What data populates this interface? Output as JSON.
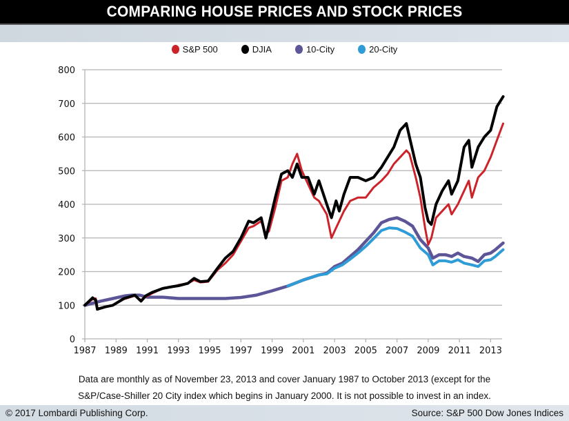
{
  "chart_data": {
    "type": "line",
    "title": "COMPARING HOUSE PRICES AND STOCK PRICES",
    "xlabel": "",
    "ylabel": "",
    "xlim": [
      1987,
      2013.8
    ],
    "ylim": [
      0,
      800
    ],
    "grid": true,
    "legend_position": "top-center",
    "x_ticks": [
      "1987",
      "1989",
      "1991",
      "1993",
      "1995",
      "1997",
      "1999",
      "2001",
      "2003",
      "2005",
      "2007",
      "2009",
      "2011",
      "2013"
    ],
    "y_ticks": [
      "0",
      "100",
      "200",
      "300",
      "400",
      "500",
      "600",
      "700",
      "800"
    ],
    "series": [
      {
        "name": "S&P 500",
        "color": "#cc2229",
        "x": [
          1987,
          1987.5,
          1987.7,
          1987.8,
          1988.3,
          1988.8,
          1989.5,
          1990.2,
          1990.6,
          1990.9,
          1991.3,
          1992,
          1992.6,
          1993,
          1993.6,
          1994,
          1994.4,
          1994.9,
          1995.5,
          1996,
          1996.5,
          1997,
          1997.5,
          1997.8,
          1998.3,
          1998.6,
          1998.8,
          1999.2,
          1999.6,
          2000,
          2000.3,
          2000.6,
          2000.9,
          2001.3,
          2001.7,
          2002,
          2002.5,
          2002.8,
          2003.1,
          2003.3,
          2003.6,
          2004,
          2004.5,
          2005,
          2005.5,
          2006,
          2006.4,
          2006.8,
          2007.2,
          2007.6,
          2007.8,
          2008.2,
          2008.5,
          2008.8,
          2009.0,
          2009.2,
          2009.5,
          2009.9,
          2010.3,
          2010.5,
          2010.9,
          2011.3,
          2011.6,
          2011.8,
          2012.2,
          2012.6,
          2013,
          2013.4,
          2013.8
        ],
        "values": [
          100,
          118,
          120,
          90,
          95,
          100,
          118,
          128,
          115,
          125,
          135,
          150,
          155,
          160,
          165,
          175,
          168,
          170,
          205,
          225,
          250,
          290,
          330,
          335,
          350,
          310,
          320,
          390,
          470,
          480,
          520,
          550,
          500,
          460,
          420,
          410,
          370,
          300,
          330,
          350,
          380,
          410,
          420,
          420,
          450,
          470,
          490,
          520,
          540,
          560,
          550,
          480,
          420,
          330,
          280,
          300,
          360,
          380,
          400,
          370,
          400,
          440,
          470,
          420,
          480,
          500,
          540,
          590,
          640
        ]
      },
      {
        "name": "DJIA",
        "color": "#000000",
        "x": [
          1987,
          1987.5,
          1987.7,
          1987.8,
          1988.3,
          1988.8,
          1989.5,
          1990.2,
          1990.6,
          1990.9,
          1991.3,
          1992,
          1992.6,
          1993,
          1993.6,
          1994,
          1994.4,
          1994.9,
          1995.5,
          1996,
          1996.5,
          1997,
          1997.5,
          1997.8,
          1998.3,
          1998.6,
          1998.8,
          1999.2,
          1999.6,
          2000,
          2000.3,
          2000.6,
          2000.9,
          2001.3,
          2001.7,
          2002,
          2002.5,
          2002.8,
          2003.1,
          2003.3,
          2003.6,
          2004,
          2004.5,
          2005,
          2005.5,
          2006,
          2006.4,
          2006.8,
          2007.2,
          2007.6,
          2007.8,
          2008.2,
          2008.5,
          2008.8,
          2009.0,
          2009.2,
          2009.5,
          2009.9,
          2010.3,
          2010.5,
          2010.9,
          2011.3,
          2011.6,
          2011.8,
          2012.2,
          2012.6,
          2013,
          2013.4,
          2013.8
        ],
        "values": [
          100,
          122,
          115,
          88,
          95,
          100,
          120,
          130,
          112,
          128,
          138,
          150,
          155,
          158,
          165,
          180,
          170,
          172,
          210,
          240,
          260,
          300,
          350,
          345,
          360,
          300,
          340,
          420,
          490,
          500,
          480,
          520,
          480,
          480,
          430,
          470,
          400,
          360,
          410,
          380,
          430,
          480,
          480,
          470,
          480,
          510,
          540,
          570,
          620,
          640,
          600,
          520,
          480,
          390,
          350,
          340,
          400,
          440,
          470,
          430,
          470,
          570,
          590,
          510,
          570,
          600,
          620,
          690,
          720
        ]
      },
      {
        "name": "10-City",
        "color": "#5c5699",
        "x": [
          1987,
          1988,
          1989,
          1989.6,
          1990,
          1990.5,
          1991,
          1992,
          1993,
          1994,
          1995,
          1996,
          1997,
          1998,
          1999,
          2000,
          2001,
          2002,
          2002.5,
          2003,
          2003.5,
          2004,
          2004.5,
          2005,
          2005.5,
          2006,
          2006.5,
          2007,
          2007.5,
          2008,
          2008.5,
          2009,
          2009.3,
          2009.7,
          2010.1,
          2010.5,
          2010.9,
          2011.3,
          2011.8,
          2012.2,
          2012.6,
          2013,
          2013.3,
          2013.8
        ],
        "values": [
          100,
          112,
          122,
          128,
          130,
          130,
          124,
          124,
          120,
          120,
          120,
          120,
          123,
          130,
          143,
          157,
          175,
          190,
          195,
          215,
          225,
          245,
          265,
          290,
          315,
          345,
          355,
          360,
          350,
          335,
          295,
          270,
          240,
          250,
          250,
          245,
          255,
          245,
          240,
          230,
          250,
          255,
          265,
          285
        ]
      },
      {
        "name": "20-City",
        "color": "#2e9cd6",
        "x": [
          2000,
          2001,
          2002,
          2002.5,
          2003,
          2003.5,
          2004,
          2004.5,
          2005,
          2005.5,
          2006,
          2006.5,
          2007,
          2007.5,
          2008,
          2008.5,
          2009,
          2009.3,
          2009.7,
          2010.1,
          2010.5,
          2010.9,
          2011.3,
          2011.8,
          2012.2,
          2012.6,
          2013,
          2013.3,
          2013.8
        ],
        "values": [
          157,
          175,
          190,
          193,
          210,
          220,
          237,
          255,
          275,
          298,
          322,
          330,
          328,
          318,
          305,
          270,
          250,
          220,
          232,
          232,
          228,
          235,
          225,
          220,
          215,
          232,
          235,
          245,
          265
        ]
      }
    ]
  },
  "header": {
    "title": "COMPARING HOUSE PRICES AND STOCK PRICES"
  },
  "legend": [
    {
      "label": "S&P 500",
      "color": "#cc2229"
    },
    {
      "label": "DJIA",
      "color": "#000000"
    },
    {
      "label": "10-City",
      "color": "#5c5699"
    },
    {
      "label": "20-City",
      "color": "#2e9cd6"
    }
  ],
  "note": {
    "line1": "Data are monthly as of November 23, 2013 and cover January 1987 to October 2013 (except for the",
    "line2": "S&P/Case-Shiller 20 City index which begins in January 2000. It is not possible to invest in an index."
  },
  "footer": {
    "copyright": "© 2017 Lombardi Publishing Corp.",
    "source": "Source: S&P 500 Dow Jones Indices"
  }
}
